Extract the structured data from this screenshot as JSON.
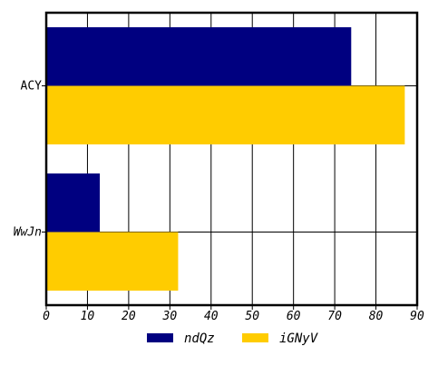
{
  "chart_data": {
    "type": "bar",
    "orientation": "horizontal",
    "categories": [
      "WwJn",
      "ACY"
    ],
    "series": [
      {
        "name": "ndQz",
        "color": "#000080",
        "values": [
          13,
          74
        ]
      },
      {
        "name": "iGNyV",
        "color": "#ffcc00",
        "values": [
          32,
          87
        ]
      }
    ],
    "xlim": [
      0,
      90
    ],
    "xticks": [
      "0",
      "10",
      "20",
      "30",
      "40",
      "50",
      "60",
      "70",
      "80",
      "90"
    ],
    "title": "",
    "xlabel": "",
    "ylabel": "",
    "grid": true,
    "legend": "bottom-center"
  }
}
